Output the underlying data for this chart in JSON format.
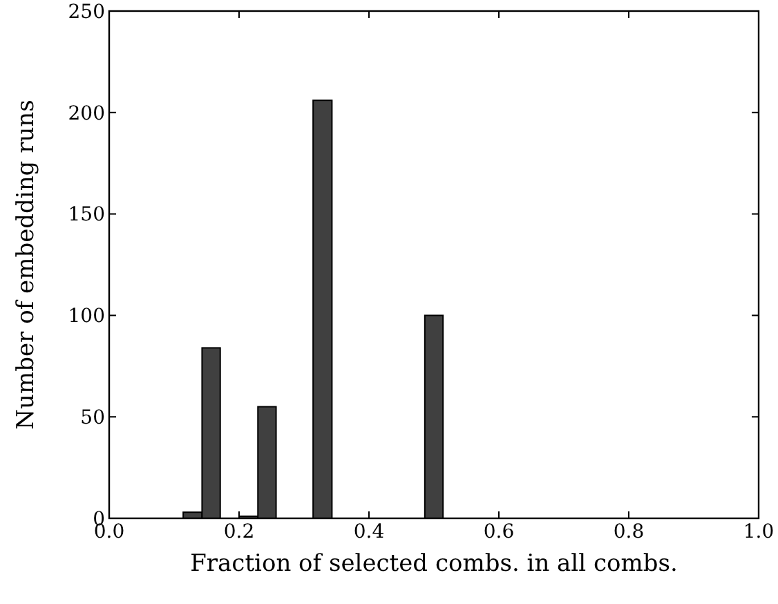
{
  "chart_data": {
    "type": "histogram",
    "xlabel": "Fraction of selected combs. in all combs.",
    "ylabel": "Number of embedding runs",
    "bins": [
      0.114,
      0.143,
      0.171,
      0.2,
      0.229,
      0.257,
      0.314,
      0.343,
      0.486,
      0.514
    ],
    "values": [
      3,
      84,
      0,
      1,
      55,
      0,
      206,
      0,
      100
    ],
    "color": "#404040",
    "xlim": [
      0,
      1
    ],
    "xticks": [
      {
        "value": 0,
        "label": "0.0"
      },
      {
        "value": 0.2,
        "label": "0.2"
      },
      {
        "value": 0.4,
        "label": "0.4"
      },
      {
        "value": 0.6,
        "label": "0.6"
      },
      {
        "value": 0.8,
        "label": "0.8"
      },
      {
        "value": 1,
        "label": "1.0"
      }
    ],
    "ylim": [
      0,
      250
    ],
    "yticks": [
      0,
      50,
      100,
      150,
      200,
      250
    ],
    "grid": false
  }
}
